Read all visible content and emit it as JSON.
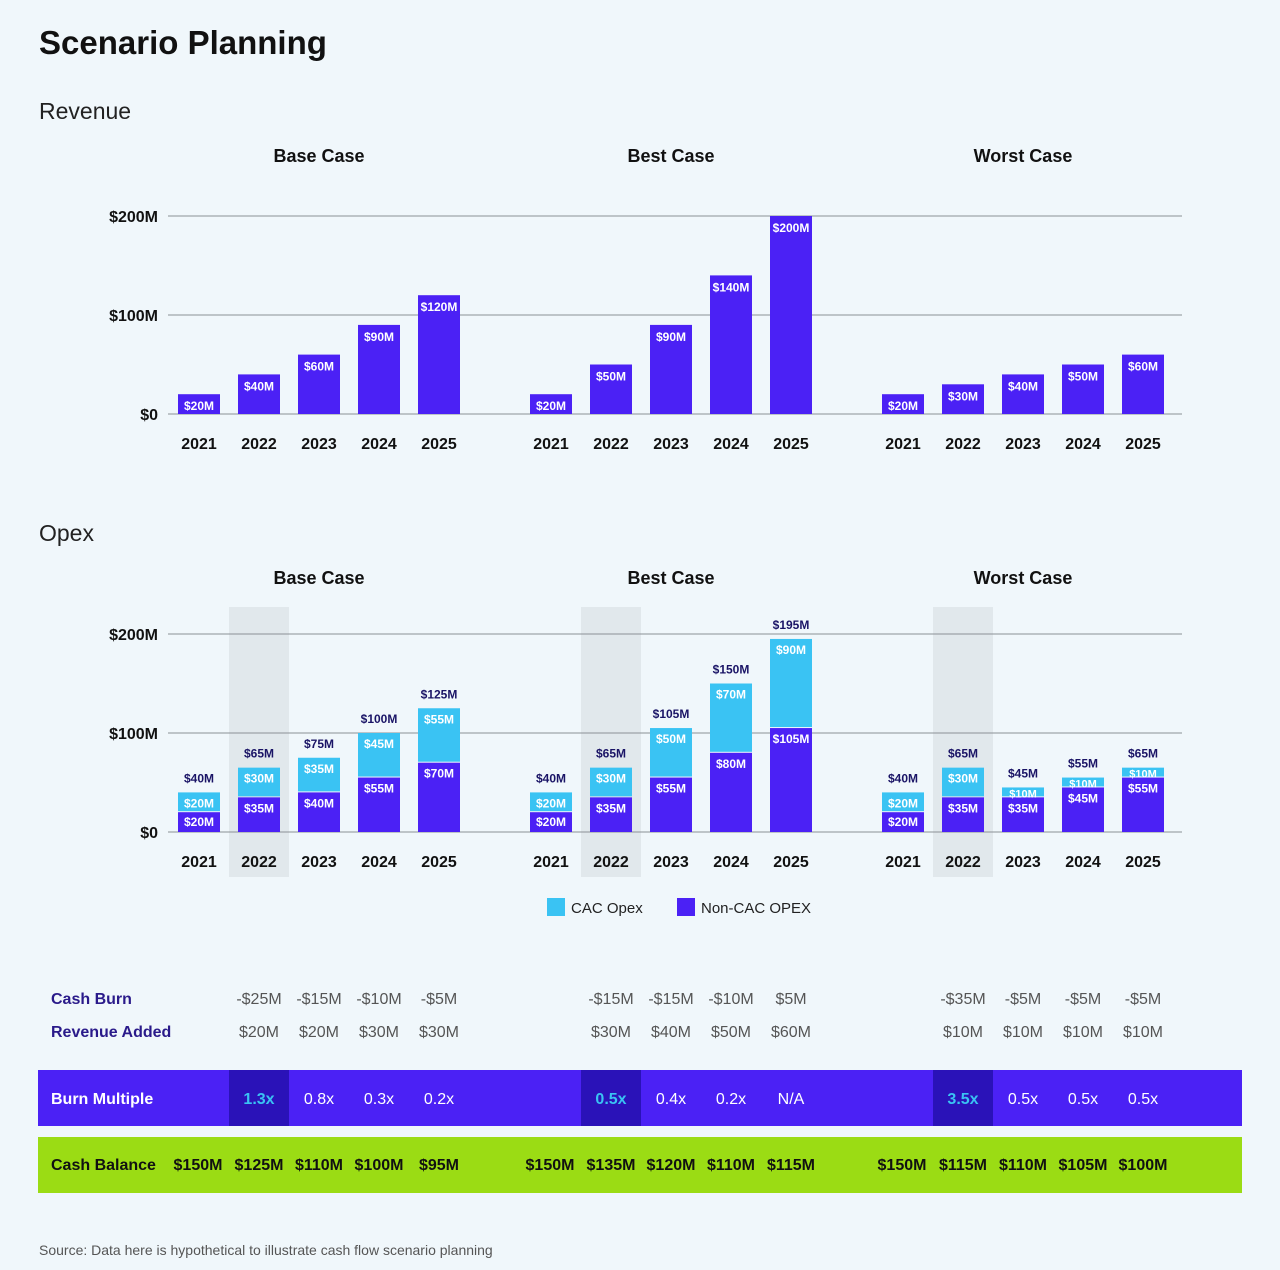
{
  "title": "Scenario Planning",
  "revenue_section": "Revenue",
  "opex_section": "Opex",
  "source": "Source: Data here is hypothetical to illustrate cash flow scenario planning",
  "colors": {
    "non_cac": "#4b21f5",
    "cac": "#3ac3f3",
    "highlight_band": "#e1e8ec",
    "burn_row": "#4b21f5",
    "burn_highlight": "#2a12b8",
    "burn_highlight_text": "#3ac3f3",
    "cash_row": "#9bdc14",
    "row_label": "#2a1a8a"
  },
  "chart_data": [
    {
      "type": "bar",
      "section": "Revenue",
      "panels": [
        {
          "title": "Base Case",
          "categories": [
            "2021",
            "2022",
            "2023",
            "2024",
            "2025"
          ],
          "values": [
            20,
            40,
            60,
            90,
            120
          ],
          "labels": [
            "$20M",
            "$40M",
            "$60M",
            "$90M",
            "$120M"
          ]
        },
        {
          "title": "Best Case",
          "categories": [
            "2021",
            "2022",
            "2023",
            "2024",
            "2025"
          ],
          "values": [
            20,
            50,
            90,
            140,
            200
          ],
          "labels": [
            "$20M",
            "$50M",
            "$90M",
            "$140M",
            "$200M"
          ]
        },
        {
          "title": "Worst Case",
          "categories": [
            "2021",
            "2022",
            "2023",
            "2024",
            "2025"
          ],
          "values": [
            20,
            30,
            40,
            50,
            60
          ],
          "labels": [
            "$20M",
            "$30M",
            "$40M",
            "$50M",
            "$60M"
          ]
        }
      ],
      "yticks": [
        0,
        100,
        200
      ],
      "ytick_labels": [
        "$0",
        "$100M",
        "$200M"
      ],
      "ylim": [
        0,
        200
      ],
      "grid": true
    },
    {
      "type": "bar",
      "stacked": true,
      "section": "Opex",
      "highlight_category": "2022",
      "series": [
        {
          "name": "Non-CAC OPEX",
          "key": "noncac"
        },
        {
          "name": "CAC Opex",
          "key": "cac"
        }
      ],
      "panels": [
        {
          "title": "Base Case",
          "categories": [
            "2021",
            "2022",
            "2023",
            "2024",
            "2025"
          ],
          "noncac": [
            20,
            35,
            40,
            55,
            70
          ],
          "cac": [
            20,
            30,
            35,
            45,
            55
          ],
          "totals": [
            "$40M",
            "$65M",
            "$75M",
            "$100M",
            "$125M"
          ]
        },
        {
          "title": "Best Case",
          "categories": [
            "2021",
            "2022",
            "2023",
            "2024",
            "2025"
          ],
          "noncac": [
            20,
            35,
            55,
            80,
            105
          ],
          "cac": [
            20,
            30,
            50,
            70,
            90
          ],
          "totals": [
            "$40M",
            "$65M",
            "$105M",
            "$150M",
            "$195M"
          ]
        },
        {
          "title": "Worst Case",
          "categories": [
            "2021",
            "2022",
            "2023",
            "2024",
            "2025"
          ],
          "noncac": [
            20,
            35,
            35,
            45,
            55
          ],
          "cac": [
            20,
            30,
            10,
            10,
            10
          ],
          "totals": [
            "$40M",
            "$65M",
            "$45M",
            "$55M",
            "$65M"
          ]
        }
      ],
      "yticks": [
        0,
        100,
        200
      ],
      "ytick_labels": [
        "$0",
        "$100M",
        "$200M"
      ],
      "ylim": [
        0,
        200
      ],
      "grid": true,
      "legend": [
        "CAC Opex",
        "Non-CAC OPEX"
      ],
      "legend_placement": "bottom-center"
    }
  ],
  "metrics": {
    "cash_burn_label": "Cash Burn",
    "revenue_added_label": "Revenue Added",
    "burn_multiple_label": "Burn Multiple",
    "cash_balance_label": "Cash Balance",
    "panels": [
      {
        "cash_burn": [
          "",
          "-$25M",
          "-$15M",
          "-$10M",
          "-$5M"
        ],
        "revenue_added": [
          "",
          "$20M",
          "$20M",
          "$30M",
          "$30M"
        ],
        "burn_multiple": [
          "",
          "1.3x",
          "0.8x",
          "0.3x",
          "0.2x"
        ],
        "cash_balance": [
          "$150M",
          "$125M",
          "$110M",
          "$100M",
          "$95M"
        ]
      },
      {
        "cash_burn": [
          "",
          "-$15M",
          "-$15M",
          "-$10M",
          "$5M"
        ],
        "revenue_added": [
          "",
          "$30M",
          "$40M",
          "$50M",
          "$60M"
        ],
        "burn_multiple": [
          "",
          "0.5x",
          "0.4x",
          "0.2x",
          "N/A"
        ],
        "cash_balance": [
          "$150M",
          "$135M",
          "$120M",
          "$110M",
          "$115M"
        ]
      },
      {
        "cash_burn": [
          "",
          "-$35M",
          "-$5M",
          "-$5M",
          "-$5M"
        ],
        "revenue_added": [
          "",
          "$10M",
          "$10M",
          "$10M",
          "$10M"
        ],
        "burn_multiple": [
          "",
          "3.5x",
          "0.5x",
          "0.5x",
          "0.5x"
        ],
        "cash_balance": [
          "$150M",
          "$115M",
          "$110M",
          "$105M",
          "$100M"
        ]
      }
    ]
  }
}
